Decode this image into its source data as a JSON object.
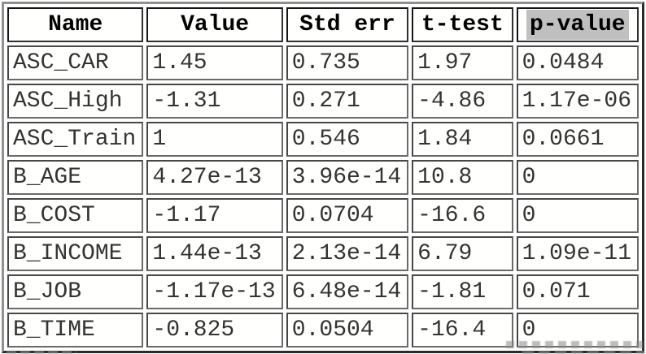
{
  "table": {
    "columns": [
      {
        "label": "Name",
        "highlighted": false
      },
      {
        "label": "Value",
        "highlighted": false
      },
      {
        "label": "Std err",
        "highlighted": false
      },
      {
        "label": "t-test",
        "highlighted": false
      },
      {
        "label": "p-value",
        "highlighted": true
      }
    ],
    "rows": [
      [
        "ASC_CAR",
        "1.45",
        "0.735",
        "1.97",
        "0.0484"
      ],
      [
        "ASC_High",
        "-1.31",
        "0.271",
        "-4.86",
        "1.17e-06"
      ],
      [
        "ASC_Train",
        "1",
        "0.546",
        "1.84",
        "0.0661"
      ],
      [
        "B_AGE",
        "4.27e-13",
        "3.96e-14",
        "10.8",
        "0"
      ],
      [
        "B_COST",
        "-1.17",
        "0.0704",
        "-16.6",
        "0"
      ],
      [
        "B_INCOME",
        "1.44e-13",
        "2.13e-14",
        "6.79",
        "1.09e-11"
      ],
      [
        "B_JOB",
        "-1.17e-13",
        "6.48e-14",
        "-1.81",
        "0.071"
      ],
      [
        "B_TIME",
        "-0.825",
        "0.0504",
        "-16.4",
        "0"
      ]
    ],
    "highlight_color": "#c0c0c0"
  },
  "colors": {
    "header_text": "#000000",
    "cell_text": "#333333",
    "outer_border_light": "#909090",
    "outer_border_dark": "#2b2b2b",
    "header_border": "#151515",
    "cell_border": "#474747",
    "cell_background": "#fffffd"
  }
}
